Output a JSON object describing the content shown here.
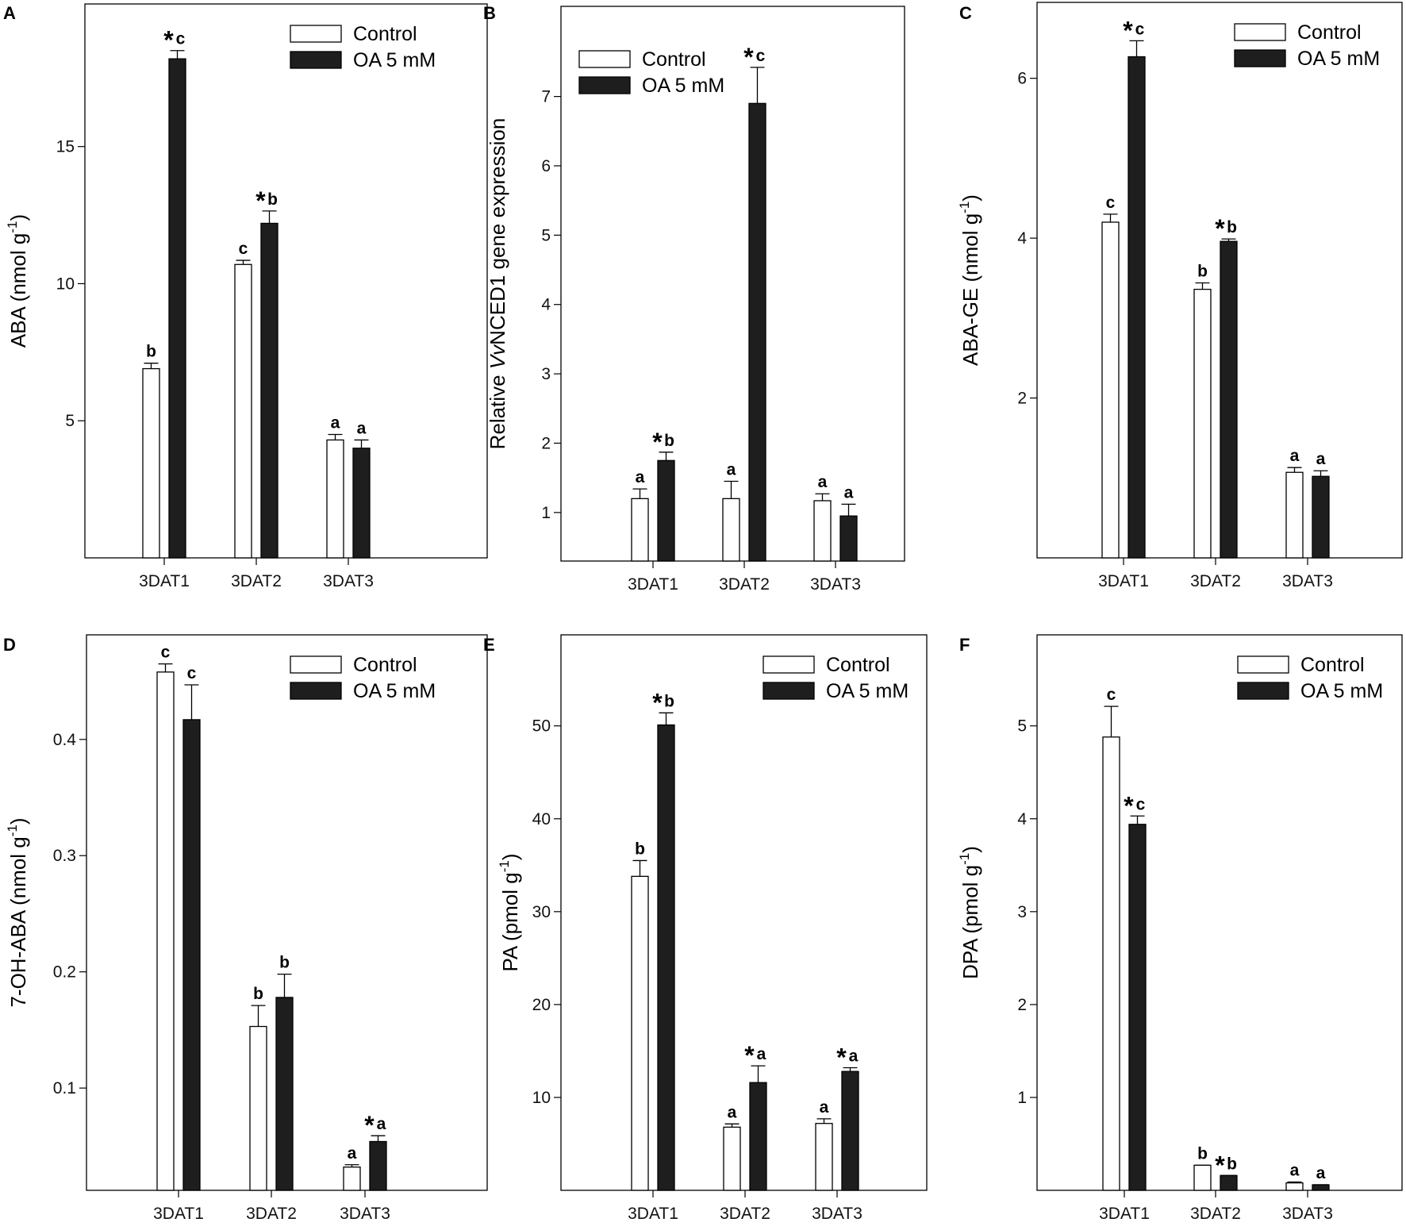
{
  "colors": {
    "control": "#ffffff",
    "treatment": "#1e1e1e",
    "stroke": "#000000"
  },
  "chart_data": [
    {
      "type": "bar",
      "panel": "A",
      "ylabel_main": "ABA (nmol g",
      "ylabel_sup": "-1",
      "ylabel_end": ")",
      "categories": [
        "3DAT1",
        "3DAT2",
        "3DAT3"
      ],
      "ylim": [
        0,
        20.2
      ],
      "yticks": [
        5,
        10,
        15
      ],
      "series": [
        {
          "name": "Control",
          "values": [
            6.9,
            10.7,
            4.3
          ],
          "errors": [
            0.2,
            0.15,
            0.2
          ],
          "labels": [
            "b",
            "c",
            "a"
          ],
          "stars": [
            false,
            false,
            false
          ]
        },
        {
          "name": "OA 5 mM",
          "values": [
            18.2,
            12.2,
            4.0
          ],
          "errors": [
            0.3,
            0.45,
            0.3
          ],
          "labels": [
            "c",
            "b",
            "a"
          ],
          "stars": [
            true,
            true,
            false
          ]
        }
      ]
    },
    {
      "type": "bar",
      "panel": "B",
      "ylabel_pre": "Relative ",
      "ylabel_ital": "Vv",
      "ylabel_main": "NCED1 gene expression",
      "categories": [
        "3DAT1",
        "3DAT2",
        "3DAT3"
      ],
      "ylim": [
        0.3,
        8.3
      ],
      "yticks": [
        1,
        2,
        3,
        4,
        5,
        6,
        7
      ],
      "series": [
        {
          "name": "Control",
          "values": [
            1.2,
            1.2,
            1.17
          ],
          "errors": [
            0.14,
            0.25,
            0.1
          ],
          "labels": [
            "a",
            "a",
            "a"
          ],
          "stars": [
            false,
            false,
            false
          ]
        },
        {
          "name": "OA 5 mM",
          "values": [
            1.75,
            6.9,
            0.95
          ],
          "errors": [
            0.12,
            0.52,
            0.17
          ],
          "labels": [
            "b",
            "c",
            "a"
          ],
          "stars": [
            true,
            true,
            false
          ]
        }
      ]
    },
    {
      "type": "bar",
      "panel": "C",
      "ylabel_main": "ABA-GE (nmol g",
      "ylabel_sup": "-1",
      "ylabel_end": ")",
      "categories": [
        "3DAT1",
        "3DAT2",
        "3DAT3"
      ],
      "ylim": [
        0,
        6.95
      ],
      "yticks": [
        2,
        4,
        6
      ],
      "series": [
        {
          "name": "Control",
          "values": [
            4.2,
            3.36,
            1.07
          ],
          "errors": [
            0.1,
            0.08,
            0.06
          ],
          "labels": [
            "c",
            "b",
            "a"
          ],
          "stars": [
            false,
            false,
            false
          ]
        },
        {
          "name": "OA 5 mM",
          "values": [
            6.27,
            3.96,
            1.02
          ],
          "errors": [
            0.2,
            0.03,
            0.07
          ],
          "labels": [
            "c",
            "b",
            "a"
          ],
          "stars": [
            true,
            true,
            false
          ]
        }
      ]
    },
    {
      "type": "bar",
      "panel": "D",
      "ylabel_main": "7-OH-ABA (nmol g",
      "ylabel_sup": "-1",
      "ylabel_end": ")",
      "categories": [
        "3DAT1",
        "3DAT2",
        "3DAT3"
      ],
      "ylim": [
        0.012,
        0.49
      ],
      "yticks": [
        0.1,
        0.2,
        0.3,
        0.4
      ],
      "series": [
        {
          "name": "Control",
          "values": [
            0.458,
            0.153,
            0.032
          ],
          "errors": [
            0.007,
            0.018,
            0.002
          ],
          "labels": [
            "c",
            "b",
            "a"
          ],
          "stars": [
            false,
            false,
            false
          ]
        },
        {
          "name": "OA 5 mM",
          "values": [
            0.417,
            0.178,
            0.054
          ],
          "errors": [
            0.03,
            0.02,
            0.005
          ],
          "labels": [
            "c",
            "b",
            "a"
          ],
          "stars": [
            false,
            false,
            true
          ]
        }
      ]
    },
    {
      "type": "bar",
      "panel": "E",
      "ylabel_main": "PA (pmol g",
      "ylabel_sup": "-1",
      "ylabel_end": ")",
      "categories": [
        "3DAT1",
        "3DAT2",
        "3DAT3"
      ],
      "ylim": [
        0,
        59.8
      ],
      "yticks": [
        10,
        20,
        30,
        40,
        50
      ],
      "series": [
        {
          "name": "Control",
          "values": [
            33.8,
            6.8,
            7.2
          ],
          "errors": [
            1.7,
            0.35,
            0.5
          ],
          "labels": [
            "b",
            "a",
            "a"
          ],
          "stars": [
            false,
            false,
            false
          ]
        },
        {
          "name": "OA 5 mM",
          "values": [
            50.1,
            11.6,
            12.8
          ],
          "errors": [
            1.3,
            1.8,
            0.4
          ],
          "labels": [
            "b",
            "a",
            "a"
          ],
          "stars": [
            true,
            true,
            true
          ]
        }
      ]
    },
    {
      "type": "bar",
      "panel": "F",
      "ylabel_main": "DPA (pmol g",
      "ylabel_sup": "-1",
      "ylabel_end": ")",
      "categories": [
        "3DAT1",
        "3DAT2",
        "3DAT3"
      ],
      "ylim": [
        0,
        5.98
      ],
      "yticks": [
        1,
        2,
        3,
        4,
        5
      ],
      "series": [
        {
          "name": "Control",
          "values": [
            4.88,
            0.27,
            0.08
          ],
          "errors": [
            0.33,
            0.0,
            0.01
          ],
          "labels": [
            "c",
            "b",
            "a"
          ],
          "stars": [
            false,
            false,
            false
          ]
        },
        {
          "name": "OA 5 mM",
          "values": [
            3.94,
            0.16,
            0.06
          ],
          "errors": [
            0.09,
            0.0,
            0.0
          ],
          "labels": [
            "c",
            "b",
            "a"
          ],
          "stars": [
            true,
            true,
            false
          ]
        }
      ]
    }
  ]
}
